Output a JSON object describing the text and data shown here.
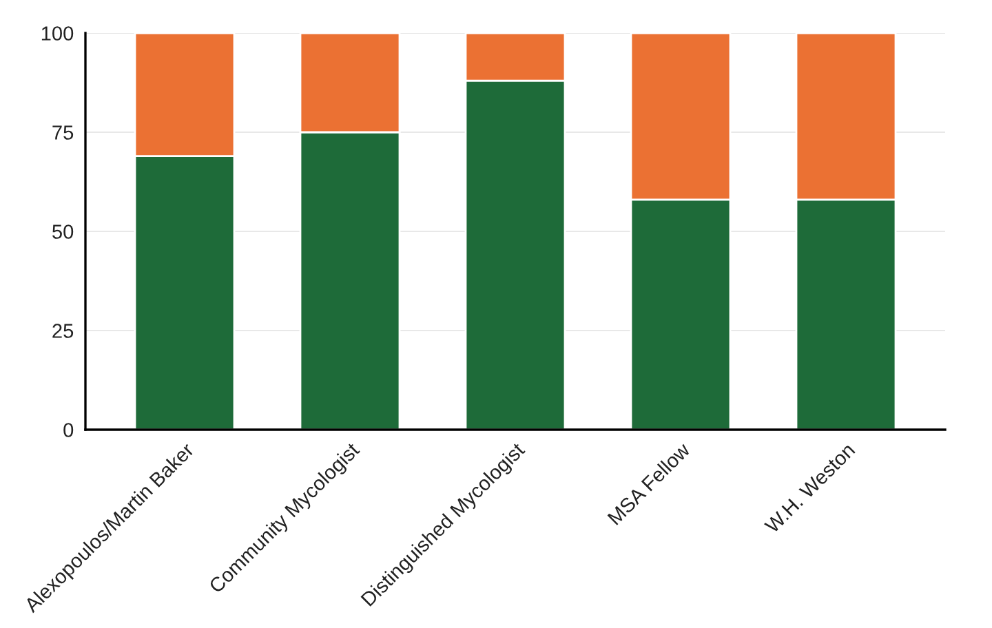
{
  "chart_data": {
    "type": "bar",
    "stacked": true,
    "categories": [
      "Alexopoulos/Martin Baker",
      "Community Mycologist",
      "Distinguished Mycologist",
      "MSA Fellow",
      "W.H. Weston"
    ],
    "series": [
      {
        "color": "#1e6b39",
        "values": [
          69,
          75,
          88,
          58,
          58
        ]
      },
      {
        "color": "#eb7133",
        "values": [
          31,
          25,
          12,
          42,
          42
        ]
      }
    ],
    "ylim": [
      0,
      100
    ],
    "yticks": [
      0,
      25,
      50,
      75,
      100
    ],
    "grid": "y",
    "legend": false
  }
}
